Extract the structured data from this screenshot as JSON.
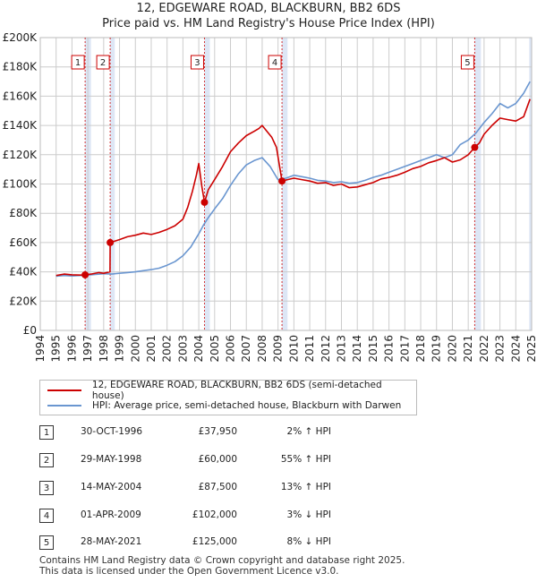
{
  "title": {
    "line1": "12, EDGEWARE ROAD, BLACKBURN, BB2 6DS",
    "line2": "Price paid vs. HM Land Registry's House Price Index (HPI)"
  },
  "colors": {
    "property": "#cc0000",
    "hpi": "#6a96d0",
    "band": "#dde6f5",
    "grid": "#cccccc"
  },
  "chart_data": {
    "type": "line",
    "title": "Price paid vs. HM Land Registry's House Price Index (HPI)",
    "xlabel": "",
    "ylabel": "",
    "xlim": [
      1994,
      2025
    ],
    "ylim": [
      0,
      200000
    ],
    "y_tick_labels": [
      "£0",
      "£20K",
      "£40K",
      "£60K",
      "£80K",
      "£100K",
      "£120K",
      "£140K",
      "£160K",
      "£180K",
      "£200K"
    ],
    "x_tick_labels": [
      "1994",
      "1995",
      "1996",
      "1997",
      "1998",
      "1999",
      "2000",
      "2001",
      "2002",
      "2003",
      "2004",
      "2005",
      "2006",
      "2007",
      "2008",
      "2009",
      "2010",
      "2011",
      "2012",
      "2013",
      "2014",
      "2015",
      "2016",
      "2017",
      "2018",
      "2019",
      "2020",
      "2021",
      "2022",
      "2023",
      "2024",
      "2025"
    ],
    "grid": true,
    "series": [
      {
        "name": "12, EDGEWARE ROAD, BLACKBURN, BB2 6DS (semi-detached house)",
        "color": "#cc0000",
        "x": [
          1995.0,
          1995.5,
          1996.0,
          1996.5,
          1996.83,
          1997.2,
          1997.7,
          1998.0,
          1998.4,
          1998.41,
          1999.0,
          1999.5,
          2000.0,
          2000.5,
          2001.0,
          2001.5,
          2002.0,
          2002.5,
          2003.0,
          2003.3,
          2003.6,
          2003.85,
          2004.0,
          2004.2,
          2004.36,
          2004.6,
          2005.0,
          2005.5,
          2006.0,
          2006.5,
          2007.0,
          2007.5,
          2007.8,
          2008.0,
          2008.3,
          2008.6,
          2008.9,
          2009.1,
          2009.25,
          2009.6,
          2010.0,
          2010.5,
          2011.0,
          2011.5,
          2012.0,
          2012.5,
          2013.0,
          2013.5,
          2014.0,
          2014.5,
          2015.0,
          2015.5,
          2016.0,
          2016.5,
          2017.0,
          2017.5,
          2018.0,
          2018.5,
          2019.0,
          2019.5,
          2020.0,
          2020.5,
          2021.0,
          2021.41,
          2021.7,
          2022.0,
          2022.5,
          2023.0,
          2023.5,
          2024.0,
          2024.5,
          2024.9
        ],
        "values": [
          37500,
          38500,
          38000,
          37800,
          37950,
          38500,
          39500,
          39000,
          40000,
          60000,
          62000,
          64000,
          65000,
          66500,
          65500,
          67000,
          69000,
          71500,
          76000,
          84000,
          95000,
          106000,
          114000,
          98000,
          87500,
          96000,
          103000,
          112000,
          122000,
          128000,
          133000,
          136000,
          138000,
          140000,
          136000,
          132000,
          125000,
          112000,
          102000,
          103000,
          104000,
          103000,
          102000,
          100500,
          101000,
          99000,
          100000,
          97500,
          98000,
          99500,
          101000,
          103500,
          104500,
          106000,
          108000,
          110500,
          112000,
          114500,
          116000,
          118000,
          115000,
          116500,
          120000,
          125000,
          128000,
          134000,
          140000,
          145000,
          144000,
          143000,
          146000,
          158000
        ]
      },
      {
        "name": "HPI: Average price, semi-detached house, Blackburn with Darwen",
        "color": "#6a96d0",
        "x": [
          1995.0,
          1995.5,
          1996.0,
          1996.5,
          1997.0,
          1997.5,
          1998.0,
          1998.5,
          1999.0,
          1999.5,
          2000.0,
          2000.5,
          2001.0,
          2001.5,
          2002.0,
          2002.5,
          2003.0,
          2003.5,
          2004.0,
          2004.3,
          2004.6,
          2005.0,
          2005.5,
          2006.0,
          2006.5,
          2007.0,
          2007.5,
          2008.0,
          2008.5,
          2009.0,
          2009.5,
          2010.0,
          2010.5,
          2011.0,
          2011.5,
          2012.0,
          2012.5,
          2013.0,
          2013.5,
          2014.0,
          2014.5,
          2015.0,
          2015.5,
          2016.0,
          2016.5,
          2017.0,
          2017.5,
          2018.0,
          2018.5,
          2019.0,
          2019.5,
          2020.0,
          2020.5,
          2021.0,
          2021.5,
          2022.0,
          2022.5,
          2023.0,
          2023.5,
          2024.0,
          2024.5,
          2024.9
        ],
        "values": [
          37000,
          37500,
          37200,
          37500,
          37800,
          38200,
          38700,
          38500,
          39000,
          39500,
          40000,
          40800,
          41500,
          42500,
          44500,
          47000,
          51000,
          57000,
          66000,
          72000,
          77000,
          83000,
          90000,
          99000,
          107000,
          113000,
          116000,
          118000,
          112000,
          103000,
          104000,
          106000,
          105000,
          104000,
          102500,
          102000,
          101000,
          101500,
          100500,
          101000,
          102500,
          104500,
          106000,
          108000,
          110000,
          112000,
          114000,
          116000,
          118000,
          120000,
          118000,
          120000,
          127000,
          130000,
          135000,
          142000,
          148000,
          155000,
          152000,
          155000,
          162000,
          170000
        ]
      }
    ],
    "markers": [
      {
        "label": "1",
        "x": 1996.83,
        "value": 37950
      },
      {
        "label": "2",
        "x": 1998.41,
        "value": 60000
      },
      {
        "label": "3",
        "x": 2004.36,
        "value": 87500
      },
      {
        "label": "4",
        "x": 2009.25,
        "value": 102000
      },
      {
        "label": "5",
        "x": 2021.41,
        "value": 125000
      }
    ]
  },
  "legend": {
    "property": "12, EDGEWARE ROAD, BLACKBURN, BB2 6DS (semi-detached house)",
    "hpi": "HPI: Average price, semi-detached house, Blackburn with Darwen"
  },
  "transactions": [
    {
      "num": "1",
      "date": "30-OCT-1996",
      "price": "£37,950",
      "hpi": "2% ↑ HPI"
    },
    {
      "num": "2",
      "date": "29-MAY-1998",
      "price": "£60,000",
      "hpi": "55% ↑ HPI"
    },
    {
      "num": "3",
      "date": "14-MAY-2004",
      "price": "£87,500",
      "hpi": "13% ↑ HPI"
    },
    {
      "num": "4",
      "date": "01-APR-2009",
      "price": "£102,000",
      "hpi": "3% ↓ HPI"
    },
    {
      "num": "5",
      "date": "28-MAY-2021",
      "price": "£125,000",
      "hpi": "8% ↓ HPI"
    }
  ],
  "footer": {
    "line1": "Contains HM Land Registry data © Crown copyright and database right 2025.",
    "line2": "This data is licensed under the Open Government Licence v3.0."
  }
}
